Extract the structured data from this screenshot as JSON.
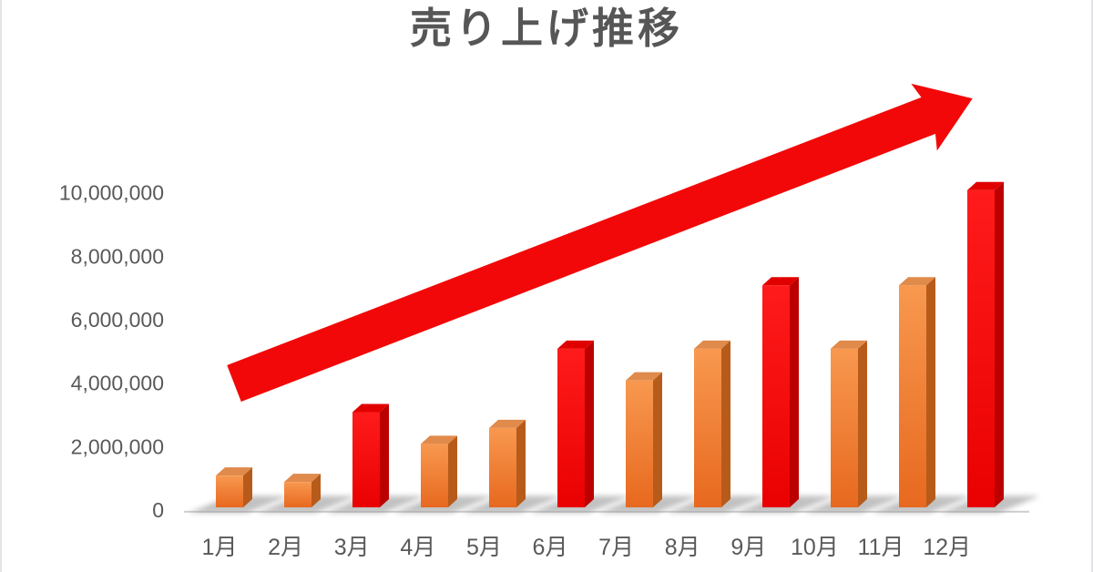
{
  "page": {
    "background": "#FFFFFF",
    "edge_border_color": "#E4E4E8"
  },
  "chart_data": {
    "type": "bar",
    "title": "売り上げ推移",
    "categories": [
      "1月",
      "2月",
      "3月",
      "4月",
      "5月",
      "6月",
      "7月",
      "8月",
      "9月",
      "10月",
      "11月",
      "12月"
    ],
    "values": [
      1000000,
      800000,
      3000000,
      2000000,
      2500000,
      5000000,
      4000000,
      5000000,
      7000000,
      5000000,
      7000000,
      10000000
    ],
    "bar_color_keys": [
      "orange",
      "orange",
      "red",
      "orange",
      "orange",
      "red",
      "orange",
      "orange",
      "red",
      "orange",
      "orange",
      "red"
    ],
    "y_axis": {
      "min": 0,
      "max": 10000000,
      "tick_step": 2000000,
      "tick_labels": [
        "0",
        "2,000,000",
        "4,000,000",
        "6,000,000",
        "8,000,000",
        "10,000,000"
      ]
    },
    "xlabel": "",
    "ylabel": "",
    "grid": false,
    "legend_position": "none",
    "style_3d": true,
    "annotations": [
      {
        "type": "trend-arrow",
        "direction": "up-right",
        "color": "#F20808"
      }
    ],
    "colors": {
      "bar_orange_front_light": "#F8984F",
      "bar_orange_front_dark": "#E7691F",
      "bar_orange_top": "#E08A4B",
      "bar_orange_side": "#B75B1B",
      "bar_red_front_light": "#FF1B1B",
      "bar_red_front_dark": "#E90101",
      "bar_red_top": "#E10000",
      "bar_red_side": "#BC0000",
      "axis_text": "#595959",
      "title_text": "#565656",
      "floor_shadow": "#8F8F8F",
      "floor_line": "#C6C6C6"
    }
  }
}
